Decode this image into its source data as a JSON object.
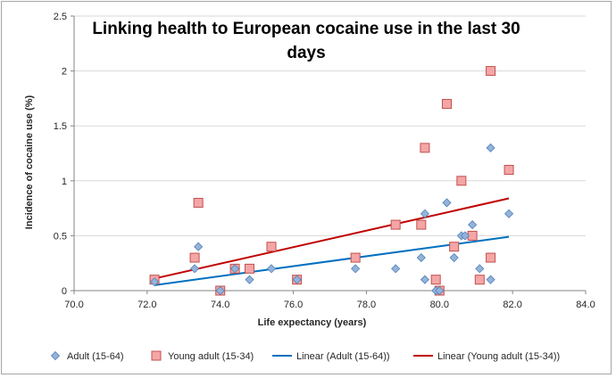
{
  "chart_data": {
    "type": "scatter",
    "title_lines": [
      "Linking health to European cocaine use in the last 30",
      "days"
    ],
    "xlabel": "Life expectancy (years)",
    "ylabel": "Incidence of cocaine use  (%)",
    "xlim": [
      70,
      84
    ],
    "ylim": [
      0,
      2.5
    ],
    "x_ticks": [
      "70.0",
      "72.0",
      "74.0",
      "76.0",
      "78.0",
      "80.0",
      "82.0",
      "84.0"
    ],
    "y_ticks": [
      "0",
      "0.5",
      "1",
      "1.5",
      "2",
      "2.5"
    ],
    "grid": "horizontal",
    "legend_position": "bottom",
    "series": [
      {
        "name": "Adult (15-64)",
        "marker": "diamond",
        "color": "#95b3d7",
        "stroke": "#4f81bd",
        "points": [
          [
            72.2,
            0.08
          ],
          [
            73.3,
            0.2
          ],
          [
            73.4,
            0.4
          ],
          [
            74.0,
            0.0
          ],
          [
            74.4,
            0.2
          ],
          [
            74.8,
            0.1
          ],
          [
            75.4,
            0.2
          ],
          [
            76.1,
            0.1
          ],
          [
            77.7,
            0.2
          ],
          [
            78.8,
            0.2
          ],
          [
            79.5,
            0.3
          ],
          [
            79.6,
            0.7
          ],
          [
            79.6,
            0.1
          ],
          [
            79.9,
            0.0
          ],
          [
            80.0,
            0.0
          ],
          [
            80.2,
            0.8
          ],
          [
            80.4,
            0.3
          ],
          [
            80.6,
            0.5
          ],
          [
            80.7,
            0.5
          ],
          [
            80.9,
            0.6
          ],
          [
            81.1,
            0.2
          ],
          [
            81.4,
            1.3
          ],
          [
            81.4,
            0.1
          ],
          [
            81.9,
            0.7
          ]
        ]
      },
      {
        "name": "Young adult (15-34)",
        "marker": "square",
        "color": "#f4a6a6",
        "stroke": "#c0504d",
        "points": [
          [
            72.2,
            0.1
          ],
          [
            73.3,
            0.3
          ],
          [
            73.4,
            0.8
          ],
          [
            74.0,
            0.0
          ],
          [
            74.4,
            0.2
          ],
          [
            74.8,
            0.2
          ],
          [
            75.4,
            0.4
          ],
          [
            76.1,
            0.1
          ],
          [
            77.7,
            0.3
          ],
          [
            78.8,
            0.6
          ],
          [
            79.5,
            0.6
          ],
          [
            79.6,
            1.3
          ],
          [
            79.9,
            0.1
          ],
          [
            80.0,
            0.0
          ],
          [
            80.2,
            1.7
          ],
          [
            80.4,
            0.4
          ],
          [
            80.6,
            1.0
          ],
          [
            80.9,
            0.5
          ],
          [
            81.1,
            0.1
          ],
          [
            81.4,
            2.0
          ],
          [
            81.4,
            0.3
          ],
          [
            81.9,
            1.1
          ]
        ]
      }
    ],
    "trendlines": [
      {
        "name": "Linear (Adult (15-64))",
        "color": "#0070c0",
        "from": [
          72.2,
          0.05
        ],
        "to": [
          81.9,
          0.49
        ]
      },
      {
        "name": "Linear (Young adult (15-34))",
        "color": "#c00000",
        "from": [
          72.2,
          0.11
        ],
        "to": [
          81.9,
          0.84
        ]
      }
    ]
  }
}
